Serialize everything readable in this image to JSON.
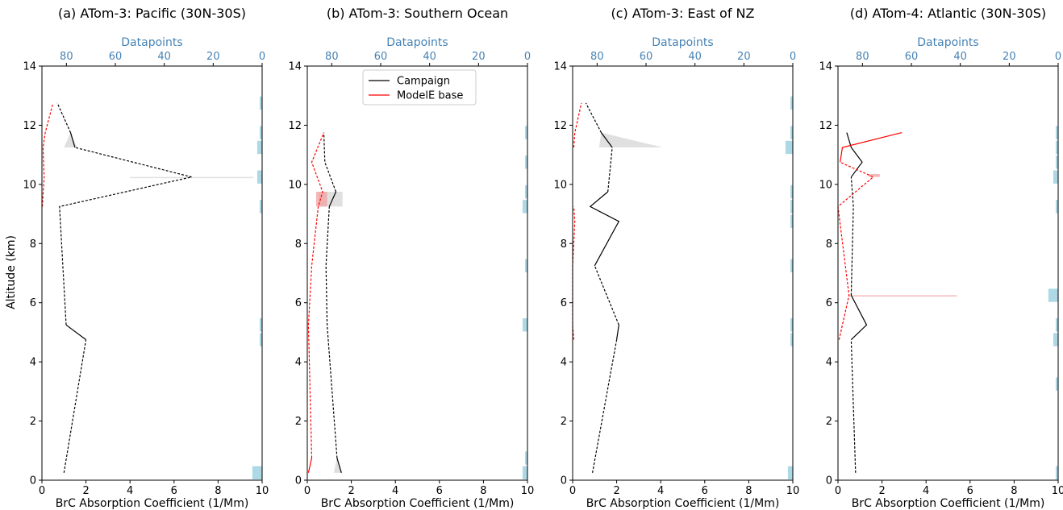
{
  "colors": {
    "campaign": "#000000",
    "model": "#ff0000",
    "datapoints_bar": "#add8e6",
    "top_axis": "#4682b4",
    "campaign_band": "#d3d3d3",
    "model_band": "#f4a0a0"
  },
  "y_axis_label": "Altitude (km)",
  "chart_data": [
    {
      "type": "line",
      "title": "(a) ATom-3: Pacific (30N-30S)",
      "xlabel": "BrC Absorption Coefficient (1/Mm)",
      "ylabel": "Altitude (km)",
      "top_xlabel": "Datapoints",
      "xlim": [
        0,
        10
      ],
      "ylim": [
        0,
        14
      ],
      "xticks": [
        "0",
        "2",
        "4",
        "6",
        "8",
        "10"
      ],
      "yticks": [
        "0",
        "2",
        "4",
        "6",
        "8",
        "10",
        "12",
        "14"
      ],
      "top_lim": [
        90,
        0
      ],
      "top_ticks": [
        "80",
        "60",
        "40",
        "20",
        "0"
      ],
      "series": [
        {
          "name": "Campaign",
          "segments": [
            {
              "style": "dashed",
              "points": [
                [
                  1.0,
                  0.25
                ],
                [
                  2.0,
                  4.75
                ]
              ]
            },
            {
              "style": "solid",
              "points": [
                [
                  2.0,
                  4.75
                ],
                [
                  1.1,
                  5.25
                ]
              ]
            },
            {
              "style": "dashed",
              "points": [
                [
                  1.1,
                  5.25
                ],
                [
                  0.8,
                  9.25
                ],
                [
                  6.8,
                  10.25
                ],
                [
                  1.5,
                  11.25
                ]
              ]
            },
            {
              "style": "solid",
              "points": [
                [
                  1.5,
                  11.25
                ],
                [
                  1.3,
                  11.75
                ]
              ]
            },
            {
              "style": "dashed",
              "points": [
                [
                  1.3,
                  11.75
                ],
                [
                  0.7,
                  12.75
                ]
              ]
            }
          ]
        },
        {
          "name": "ModelE base",
          "segments": [
            {
              "style": "dashed",
              "points": [
                [
                  0.02,
                  9.25
                ],
                [
                  0.1,
                  10.25
                ],
                [
                  0.05,
                  11.25
                ],
                [
                  0.15,
                  11.75
                ],
                [
                  0.5,
                  12.75
                ]
              ]
            }
          ]
        }
      ],
      "uncertainty": [
        {
          "series": "Campaign",
          "points": [
            [
              1.0,
              11.25,
              1.6
            ],
            [
              1.3,
              11.75,
              1.3
            ]
          ]
        },
        {
          "series": "Campaign",
          "points": [
            [
              4.0,
              10.25,
              9.6
            ]
          ]
        }
      ],
      "datapoints": [
        {
          "altitude_range": [
            12.5,
            13.0
          ],
          "count": 1
        },
        {
          "altitude_range": [
            11.5,
            12.0
          ],
          "count": 1
        },
        {
          "altitude_range": [
            11.0,
            11.5
          ],
          "count": 2
        },
        {
          "altitude_range": [
            10.0,
            10.5
          ],
          "count": 2
        },
        {
          "altitude_range": [
            9.0,
            9.5
          ],
          "count": 1
        },
        {
          "altitude_range": [
            5.0,
            5.5
          ],
          "count": 1
        },
        {
          "altitude_range": [
            4.5,
            5.0
          ],
          "count": 1
        },
        {
          "altitude_range": [
            0.0,
            0.5
          ],
          "count": 4
        }
      ]
    },
    {
      "type": "line",
      "title": "(b) ATom-3: Southern Ocean",
      "xlabel": "BrC Absorption Coefficient (1/Mm)",
      "top_xlabel": "Datapoints",
      "xlim": [
        0,
        10
      ],
      "ylim": [
        0,
        14
      ],
      "xticks": [
        "0",
        "2",
        "4",
        "6",
        "8",
        "10"
      ],
      "yticks": [
        "0",
        "2",
        "4",
        "6",
        "8",
        "10",
        "12",
        "14"
      ],
      "top_lim": [
        90,
        0
      ],
      "top_ticks": [
        "80",
        "60",
        "40",
        "20",
        "0"
      ],
      "legend": {
        "location": "upper-center",
        "entries": [
          "Campaign",
          "ModelE base"
        ]
      },
      "series": [
        {
          "name": "Campaign",
          "segments": [
            {
              "style": "solid",
              "points": [
                [
                  1.55,
                  0.25
                ],
                [
                  1.35,
                  0.75
                ]
              ]
            },
            {
              "style": "dashed",
              "points": [
                [
                  1.35,
                  0.75
                ],
                [
                  0.9,
                  5.25
                ],
                [
                  0.85,
                  7.25
                ],
                [
                  1.0,
                  9.25
                ]
              ]
            },
            {
              "style": "solid",
              "points": [
                [
                  1.0,
                  9.25
                ],
                [
                  1.3,
                  9.75
                ]
              ]
            },
            {
              "style": "dashed",
              "points": [
                [
                  1.3,
                  9.75
                ],
                [
                  0.8,
                  10.75
                ],
                [
                  0.75,
                  11.75
                ]
              ]
            }
          ]
        },
        {
          "name": "ModelE base",
          "segments": [
            {
              "style": "solid",
              "points": [
                [
                  0.05,
                  0.25
                ],
                [
                  0.2,
                  0.75
                ]
              ]
            },
            {
              "style": "dashed",
              "points": [
                [
                  0.2,
                  0.75
                ],
                [
                  0.05,
                  5.25
                ],
                [
                  0.2,
                  7.25
                ],
                [
                  0.5,
                  9.25
                ],
                [
                  0.7,
                  9.75
                ],
                [
                  0.2,
                  10.75
                ],
                [
                  0.75,
                  11.75
                ]
              ]
            }
          ]
        }
      ],
      "uncertainty": [
        {
          "series": "Campaign",
          "points": [
            [
              1.2,
              0.25,
              1.55
            ],
            [
              1.35,
              0.75,
              1.35
            ]
          ]
        },
        {
          "series": "Campaign",
          "points": [
            [
              0.5,
              9.25,
              1.6
            ],
            [
              0.5,
              9.75,
              1.6
            ]
          ]
        },
        {
          "series": "ModelE base",
          "points": [
            [
              0.4,
              9.25,
              0.9
            ],
            [
              0.4,
              9.75,
              0.9
            ]
          ]
        }
      ],
      "datapoints": [
        {
          "altitude_range": [
            11.5,
            12.0
          ],
          "count": 1
        },
        {
          "altitude_range": [
            10.5,
            11.0
          ],
          "count": 1
        },
        {
          "altitude_range": [
            9.5,
            10.0
          ],
          "count": 1
        },
        {
          "altitude_range": [
            9.0,
            9.5
          ],
          "count": 2
        },
        {
          "altitude_range": [
            7.0,
            7.5
          ],
          "count": 1
        },
        {
          "altitude_range": [
            5.0,
            5.5
          ],
          "count": 2
        },
        {
          "altitude_range": [
            0.5,
            1.0
          ],
          "count": 1
        },
        {
          "altitude_range": [
            0.0,
            0.5
          ],
          "count": 2
        }
      ]
    },
    {
      "type": "line",
      "title": "(c) ATom-3: East of NZ",
      "xlabel": "BrC Absorption Coefficient (1/Mm)",
      "top_xlabel": "Datapoints",
      "xlim": [
        0,
        10
      ],
      "ylim": [
        0,
        14
      ],
      "xticks": [
        "0",
        "2",
        "4",
        "6",
        "8",
        "10"
      ],
      "yticks": [
        "0",
        "2",
        "4",
        "6",
        "8",
        "10",
        "12",
        "14"
      ],
      "top_lim": [
        90,
        0
      ],
      "top_ticks": [
        "80",
        "60",
        "40",
        "20",
        "0"
      ],
      "series": [
        {
          "name": "Campaign",
          "segments": [
            {
              "style": "dashed",
              "points": [
                [
                  0.9,
                  0.25
                ],
                [
                  2.0,
                  4.75
                ]
              ]
            },
            {
              "style": "solid",
              "points": [
                [
                  2.0,
                  4.75
                ],
                [
                  2.1,
                  5.25
                ]
              ]
            },
            {
              "style": "dashed",
              "points": [
                [
                  2.1,
                  5.25
                ],
                [
                  1.0,
                  7.25
                ]
              ]
            },
            {
              "style": "solid",
              "points": [
                [
                  1.0,
                  7.25
                ],
                [
                  2.1,
                  8.75
                ],
                [
                  0.8,
                  9.25
                ],
                [
                  1.6,
                  9.75
                ]
              ]
            },
            {
              "style": "dashed",
              "points": [
                [
                  1.6,
                  9.75
                ],
                [
                  1.8,
                  11.25
                ]
              ]
            },
            {
              "style": "solid",
              "points": [
                [
                  1.8,
                  11.25
                ],
                [
                  1.3,
                  11.75
                ]
              ]
            },
            {
              "style": "dashed",
              "points": [
                [
                  1.3,
                  11.75
                ],
                [
                  0.6,
                  12.75
                ]
              ]
            }
          ]
        },
        {
          "name": "ModelE base",
          "segments": [
            {
              "style": "dashed",
              "points": [
                [
                  0.05,
                  4.75
                ],
                [
                  0.0,
                  5.25
                ],
                [
                  0.0,
                  7.25
                ],
                [
                  0.1,
                  8.75
                ],
                [
                  0.05,
                  9.25
                ]
              ]
            },
            {
              "style": "dashed",
              "points": [
                [
                  0.05,
                  11.25
                ],
                [
                  0.1,
                  11.75
                ],
                [
                  0.4,
                  12.75
                ]
              ]
            }
          ]
        }
      ],
      "uncertainty": [
        {
          "series": "Campaign",
          "points": [
            [
              1.2,
              11.25,
              4.1
            ],
            [
              1.3,
              11.75,
              1.3
            ]
          ]
        }
      ],
      "datapoints": [
        {
          "altitude_range": [
            12.5,
            13.0
          ],
          "count": 1
        },
        {
          "altitude_range": [
            11.5,
            12.0
          ],
          "count": 1
        },
        {
          "altitude_range": [
            11.0,
            11.5
          ],
          "count": 3
        },
        {
          "altitude_range": [
            9.5,
            10.0
          ],
          "count": 1
        },
        {
          "altitude_range": [
            8.5,
            9.0
          ],
          "count": 1
        },
        {
          "altitude_range": [
            9.0,
            9.5
          ],
          "count": 1
        },
        {
          "altitude_range": [
            7.0,
            7.5
          ],
          "count": 1
        },
        {
          "altitude_range": [
            5.0,
            5.5
          ],
          "count": 1
        },
        {
          "altitude_range": [
            4.5,
            5.0
          ],
          "count": 1
        },
        {
          "altitude_range": [
            0.0,
            0.5
          ],
          "count": 2
        }
      ]
    },
    {
      "type": "line",
      "title": "(d) ATom-4: Atlantic (30N-30S)",
      "xlabel": "BrC Absorption Coefficient (1/Mm)",
      "top_xlabel": "Datapoints",
      "xlim": [
        0,
        10
      ],
      "ylim": [
        0,
        14
      ],
      "xticks": [
        "0",
        "2",
        "4",
        "6",
        "8",
        "10"
      ],
      "yticks": [
        "0",
        "2",
        "4",
        "6",
        "8",
        "10",
        "12",
        "14"
      ],
      "top_lim": [
        90,
        0
      ],
      "top_ticks": [
        "80",
        "60",
        "40",
        "20",
        "0"
      ],
      "series": [
        {
          "name": "Campaign",
          "segments": [
            {
              "style": "dashed",
              "points": [
                [
                  0.8,
                  0.25
                ],
                [
                  0.6,
                  4.75
                ]
              ]
            },
            {
              "style": "solid",
              "points": [
                [
                  0.6,
                  4.75
                ],
                [
                  1.3,
                  5.25
                ],
                [
                  0.6,
                  6.25
                ]
              ]
            },
            {
              "style": "dashed",
              "points": [
                [
                  0.6,
                  6.25
                ],
                [
                  0.7,
                  9.25
                ],
                [
                  0.6,
                  10.25
                ]
              ]
            },
            {
              "style": "solid",
              "points": [
                [
                  0.6,
                  10.25
                ],
                [
                  1.1,
                  10.75
                ],
                [
                  0.6,
                  11.25
                ],
                [
                  0.4,
                  11.75
                ]
              ]
            }
          ]
        },
        {
          "name": "ModelE base",
          "segments": [
            {
              "style": "dashed",
              "points": [
                [
                  0.05,
                  4.75
                ],
                [
                  0.5,
                  6.25
                ],
                [
                  0.0,
                  9.25
                ],
                [
                  1.6,
                  10.25
                ],
                [
                  0.1,
                  10.75
                ]
              ]
            },
            {
              "style": "solid",
              "points": [
                [
                  0.1,
                  10.75
                ],
                [
                  0.2,
                  11.25
                ],
                [
                  2.9,
                  11.75
                ]
              ]
            }
          ]
        }
      ],
      "uncertainty": [
        {
          "series": "ModelE base",
          "points": [
            [
              1.4,
              10.25,
              1.9
            ],
            [
              1.4,
              10.35,
              1.9
            ]
          ]
        },
        {
          "series": "ModelE base",
          "points": [
            [
              0.5,
              6.25,
              5.4
            ]
          ]
        }
      ],
      "datapoints": [
        {
          "altitude_range": [
            11.5,
            12.0
          ],
          "count": 1
        },
        {
          "altitude_range": [
            11.0,
            11.5
          ],
          "count": 1
        },
        {
          "altitude_range": [
            10.5,
            11.0
          ],
          "count": 1
        },
        {
          "altitude_range": [
            10.0,
            10.5
          ],
          "count": 2
        },
        {
          "altitude_range": [
            9.0,
            9.5
          ],
          "count": 1
        },
        {
          "altitude_range": [
            6.0,
            6.5
          ],
          "count": 4
        },
        {
          "altitude_range": [
            5.0,
            5.5
          ],
          "count": 1
        },
        {
          "altitude_range": [
            4.5,
            5.0
          ],
          "count": 2
        },
        {
          "altitude_range": [
            3.0,
            3.5
          ],
          "count": 1
        },
        {
          "altitude_range": [
            0.0,
            0.5
          ],
          "count": 1
        }
      ]
    }
  ]
}
